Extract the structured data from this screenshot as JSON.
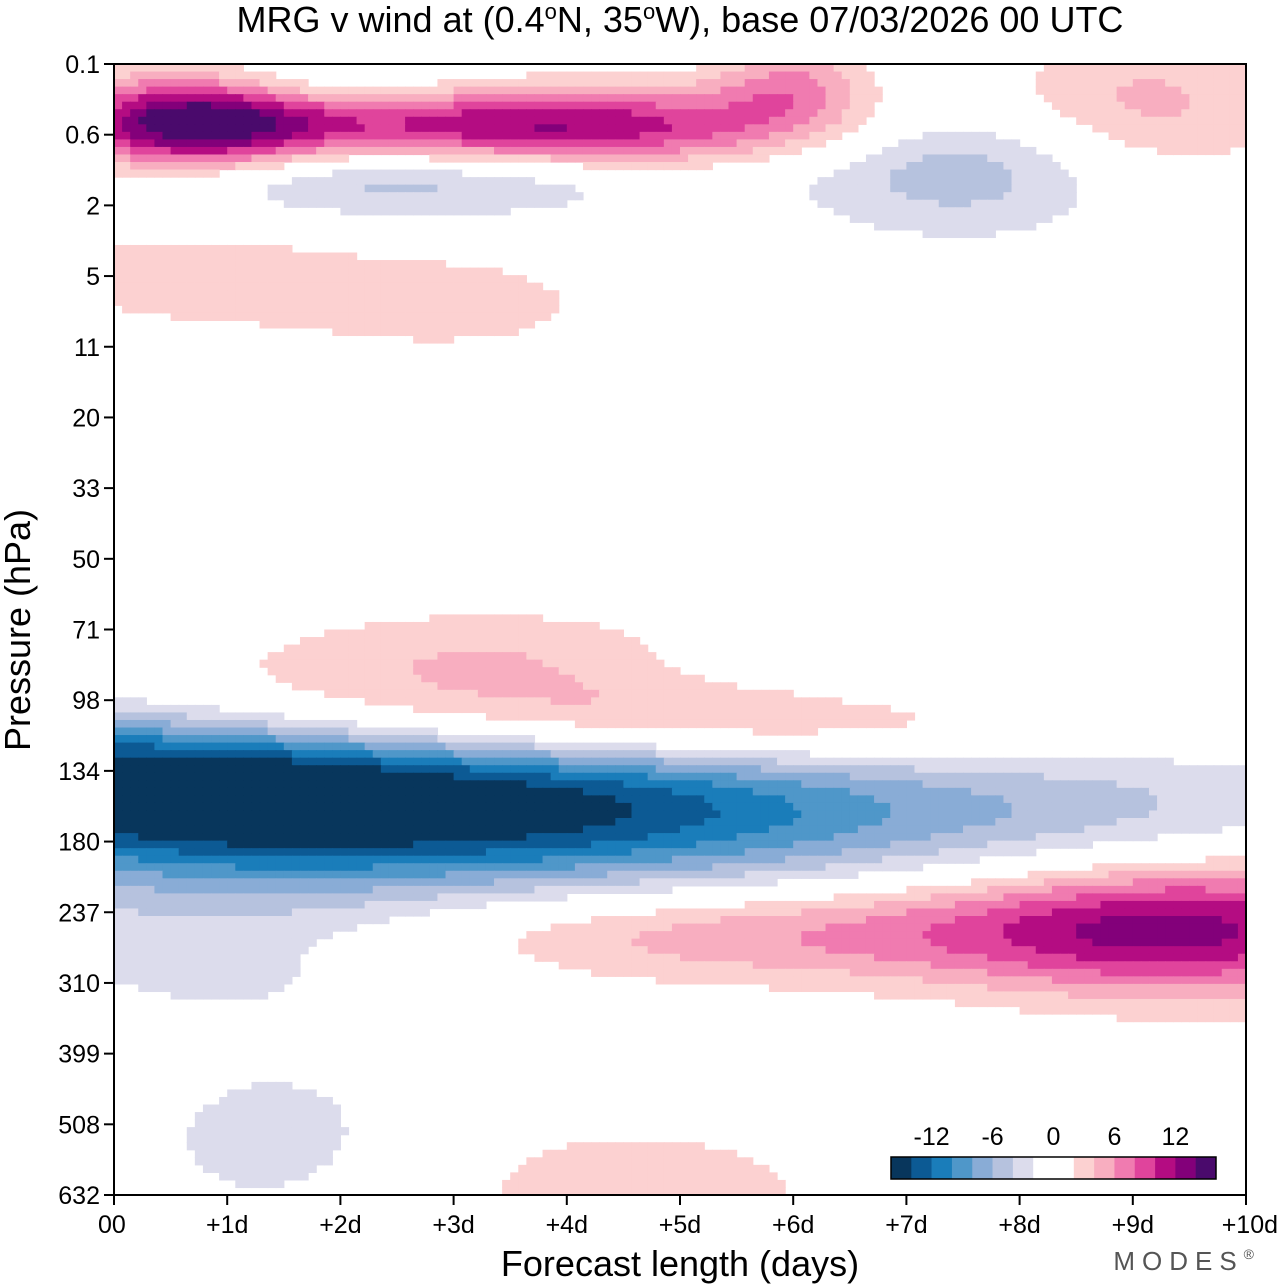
{
  "chart_data": {
    "type": "heatmap",
    "variable": "MRG v wind",
    "title_parts": {
      "prefix": "MRG v wind at (0.4",
      "deg1": "o",
      "mid": "N, 35",
      "deg2": "o",
      "suffix": "W),  base 07/03/2026  00 UTC"
    },
    "xlabel": "Forecast length (days)",
    "ylabel": "Pressure (hPa)",
    "x_ticks": [
      "00",
      "+1d",
      "+2d",
      "+3d",
      "+4d",
      "+5d",
      "+6d",
      "+7d",
      "+8d",
      "+9d",
      "+10d"
    ],
    "y_ticks": [
      "0.1",
      "0.6",
      "2",
      "5",
      "11",
      "20",
      "33",
      "50",
      "71",
      "98",
      "134",
      "180",
      "237",
      "310",
      "399",
      "508",
      "632"
    ],
    "xlim": [
      0,
      10
    ],
    "colorbar": {
      "labels": [
        "-12",
        "-6",
        "0",
        "6",
        "12"
      ],
      "label_levels": [
        -12,
        -6,
        0,
        6,
        12
      ],
      "min": -16,
      "max": 16,
      "colors": [
        "#08365c",
        "#0c5a94",
        "#1a7dba",
        "#4f97c9",
        "#89acd6",
        "#b6c2de",
        "#dcdcec",
        "#ffffff",
        "#ffffff",
        "#fcd1d1",
        "#f8aec0",
        "#f07bb0",
        "#e0449c",
        "#b40c82",
        "#83007a",
        "#4a0a6c"
      ]
    },
    "features": [
      {
        "sign": "negative",
        "peak": -13,
        "t_days": 0.0,
        "t_width": 1.8,
        "level_index": 10.1,
        "level_width": 0.8
      },
      {
        "sign": "negative",
        "peak": -15,
        "t_days": 3.5,
        "t_width": 2.6,
        "level_index": 10.5,
        "level_width": 0.8
      },
      {
        "sign": "negative",
        "peak": -3.5,
        "t_days": 8.8,
        "t_width": 1.8,
        "level_index": 10.6,
        "level_width": 0.7
      },
      {
        "sign": "negative",
        "peak": -3,
        "t_days": 1.0,
        "t_width": 1.6,
        "level_index": 12.4,
        "level_width": 0.9
      },
      {
        "sign": "negative",
        "peak": -3,
        "t_days": 7.0,
        "t_width": 4.0,
        "level_index": 8.7,
        "level_width": 0.5
      },
      {
        "sign": "negative",
        "peak": -3,
        "t_days": 1.5,
        "t_width": 1.0,
        "level_index": 15.3,
        "level_width": 0.9
      },
      {
        "sign": "positive",
        "peak": 4,
        "t_days": 1.0,
        "t_width": 1.6,
        "level_index": 9.0,
        "level_width": 0.6
      },
      {
        "sign": "positive",
        "peak": 8,
        "t_days": 5.0,
        "t_width": 2.5,
        "level_index": 9.3,
        "level_width": 0.5
      },
      {
        "sign": "positive",
        "peak": 4.5,
        "t_days": 3.5,
        "t_width": 1.4,
        "level_index": 8.4,
        "level_width": 0.5
      },
      {
        "sign": "positive",
        "peak": 6,
        "t_days": 6.0,
        "t_width": 2.5,
        "level_index": 12.3,
        "level_width": 0.5
      },
      {
        "sign": "positive",
        "peak": 11,
        "t_days": 9.5,
        "t_width": 1.5,
        "level_index": 12.2,
        "level_width": 0.7
      },
      {
        "sign": "positive",
        "peak": 3,
        "t_days": 4.5,
        "t_width": 1.6,
        "level_index": 16.0,
        "level_width": 0.9
      },
      {
        "sign": "positive",
        "peak": 15,
        "t_days": 0.7,
        "t_width": 0.8,
        "level_index": 0.8,
        "level_width": 0.5
      },
      {
        "sign": "positive",
        "peak": 13,
        "t_days": 3.7,
        "t_width": 1.8,
        "level_index": 0.9,
        "level_width": 0.4
      },
      {
        "sign": "positive",
        "peak": 5,
        "t_days": 9.0,
        "t_width": 1.0,
        "level_index": 0.6,
        "level_width": 0.7
      },
      {
        "sign": "positive",
        "peak": 6,
        "t_days": 6.0,
        "t_width": 0.5,
        "level_index": 0.3,
        "level_width": 0.4
      },
      {
        "sign": "positive",
        "peak": 3,
        "t_days": 0.7,
        "t_width": 1.2,
        "level_index": 3.0,
        "level_width": 0.6
      },
      {
        "sign": "positive",
        "peak": 3,
        "t_days": 3.0,
        "t_width": 1.0,
        "level_index": 3.4,
        "level_width": 0.5
      },
      {
        "sign": "negative",
        "peak": -6,
        "t_days": 2.4,
        "t_width": 1.6,
        "level_index": 1.6,
        "level_width": 0.4
      },
      {
        "sign": "negative",
        "peak": -6,
        "t_days": 7.5,
        "t_width": 1.0,
        "level_index": 1.4,
        "level_width": 0.7
      },
      {
        "sign": "negative",
        "peak": -4,
        "t_days": 1.5,
        "t_width": 1.0,
        "level_index": 0.3,
        "level_width": 0.3
      }
    ]
  },
  "branding": {
    "text": "MODES",
    "mark": "®"
  }
}
